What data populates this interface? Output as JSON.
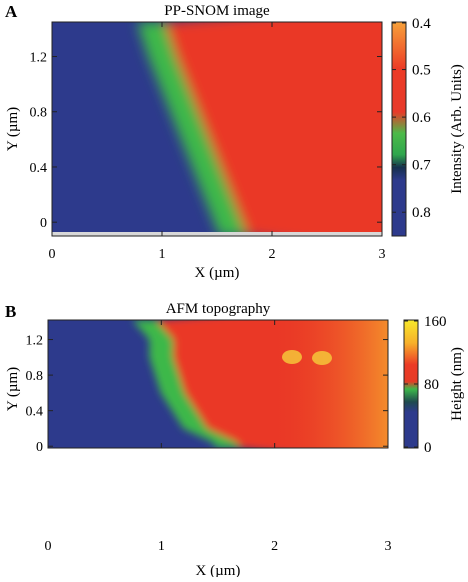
{
  "colors": {
    "low": "#2d3a8c",
    "green": "#3db84a",
    "red": "#ea3826",
    "orange": "#f59a2c",
    "yellow": "#f8e72a",
    "frame": "#222222"
  },
  "chart_data": [
    {
      "type": "heatmap",
      "panel_label": "A",
      "title": "PP-SNOM image",
      "xlabel": "X (µm)",
      "ylabel": "Y (µm)",
      "xlim": [
        0,
        3
      ],
      "ylim": [
        -0.1,
        1.45
      ],
      "x_ticks": [
        0,
        1,
        2,
        3
      ],
      "x_tick_labels": [
        "0",
        "1",
        "2",
        "3"
      ],
      "y_ticks": [
        0,
        0.4,
        0.8,
        1.2
      ],
      "y_tick_labels": [
        "0",
        "0.4",
        "0.8",
        "1.2"
      ],
      "colorbar": {
        "label": "Intensity (Arb. Units)",
        "ticks": [
          0.4,
          0.5,
          0.6,
          0.7,
          0.8
        ],
        "tick_labels": [
          "0.4",
          "0.5",
          "0.6",
          "0.7",
          "0.8"
        ],
        "range": [
          0.4,
          0.85
        ],
        "reversed": true
      },
      "boundary_x_at_y": [
        {
          "y": 1.45,
          "x": 0.9
        },
        {
          "y": 1.2,
          "x": 1.0
        },
        {
          "y": 1.0,
          "x": 1.1
        },
        {
          "y": 0.8,
          "x": 1.2
        },
        {
          "y": 0.6,
          "x": 1.3
        },
        {
          "y": 0.4,
          "x": 1.4
        },
        {
          "y": 0.2,
          "x": 1.5
        },
        {
          "y": 0.0,
          "x": 1.6
        },
        {
          "y": -0.1,
          "x": 1.65
        }
      ],
      "left_region_value": 0.82,
      "boundary_value": 0.6,
      "right_region_value": 0.5
    },
    {
      "type": "heatmap",
      "panel_label": "B",
      "title": "AFM topography",
      "xlabel": "X (µm)",
      "ylabel": "Y (µm)",
      "xlim": [
        0,
        3
      ],
      "ylim": [
        -0.02,
        1.42
      ],
      "x_ticks": [
        0,
        1,
        2,
        3
      ],
      "x_tick_labels": [
        "0",
        "1",
        "2",
        "3"
      ],
      "y_ticks": [
        0,
        0.4,
        0.8,
        1.2
      ],
      "y_tick_labels": [
        "0",
        "0.4",
        "0.8",
        "1.2"
      ],
      "colorbar": {
        "label": "Height (nm)",
        "ticks": [
          0,
          80,
          160
        ],
        "tick_labels": [
          "0",
          "80",
          "160"
        ],
        "range": [
          0,
          160
        ],
        "reversed": false
      },
      "boundary_x_at_y": [
        {
          "y": 1.42,
          "x": 0.85
        },
        {
          "y": 1.2,
          "x": 1.0
        },
        {
          "y": 1.0,
          "x": 1.0
        },
        {
          "y": 0.8,
          "x": 1.05
        },
        {
          "y": 0.6,
          "x": 1.1
        },
        {
          "y": 0.4,
          "x": 1.2
        },
        {
          "y": 0.2,
          "x": 1.3
        },
        {
          "y": 0.05,
          "x": 1.55
        },
        {
          "y": -0.02,
          "x": 1.6
        }
      ],
      "left_region_value": 20,
      "boundary_value": 65,
      "right_region_value": 110
    }
  ]
}
